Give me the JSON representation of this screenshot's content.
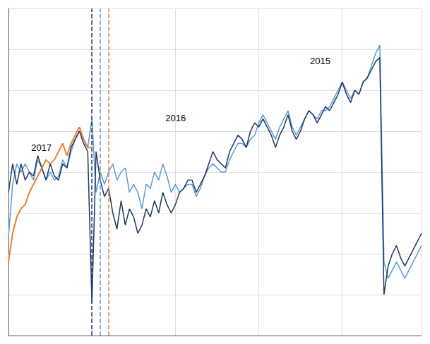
{
  "chart_data": {
    "type": "line",
    "x": [
      0,
      1,
      2,
      3,
      4,
      5,
      6,
      7,
      8,
      9,
      10,
      11,
      12,
      13,
      14,
      15,
      16,
      17,
      18,
      19,
      20,
      21,
      22,
      23,
      24,
      25,
      26,
      27,
      28,
      29,
      30,
      31,
      32,
      33,
      34,
      35,
      36,
      37,
      38,
      39,
      40,
      41,
      42,
      43,
      44,
      45,
      46,
      47,
      48,
      49,
      50,
      51,
      52,
      53,
      54,
      55,
      56,
      57,
      58,
      59,
      60,
      61,
      62,
      63,
      64,
      65,
      66,
      67,
      68,
      69,
      70,
      71,
      72,
      73,
      74,
      75,
      76,
      77,
      78,
      79,
      80,
      81,
      82,
      83,
      84,
      85,
      86,
      87,
      88,
      89,
      90,
      91,
      92,
      93,
      94,
      95,
      96,
      97,
      98,
      99
    ],
    "series": [
      {
        "color": "#5b9bd5",
        "values": [
          44,
          57,
          62,
          60,
          62,
          60,
          58,
          63,
          61,
          58,
          60,
          58,
          59,
          63,
          61,
          65,
          68,
          70,
          68,
          66,
          73,
          55,
          60,
          57,
          60,
          62,
          58,
          60,
          61,
          55,
          57,
          55,
          51,
          57,
          56,
          60,
          58,
          62,
          59,
          55,
          57,
          55,
          56,
          57,
          57,
          54,
          56,
          59,
          61,
          62,
          61,
          60,
          60,
          63,
          65,
          67,
          67,
          66,
          68,
          69,
          72,
          74,
          72,
          70,
          68,
          71,
          73,
          75,
          71,
          69,
          71,
          73,
          75,
          74,
          73,
          75,
          75,
          76,
          78,
          80,
          82,
          80,
          78,
          80,
          79,
          82,
          83,
          86,
          89,
          91,
          38,
          34,
          36,
          38,
          36,
          34,
          36,
          38,
          40,
          42
        ]
      },
      {
        "color": "#1f3864",
        "values": [
          55,
          62,
          57,
          62,
          58,
          60,
          59,
          64,
          61,
          58,
          62,
          59,
          58,
          62,
          61,
          66,
          68,
          70,
          67,
          65,
          28,
          65,
          58,
          54,
          56,
          50,
          46,
          53,
          47,
          51,
          49,
          45,
          47,
          51,
          49,
          53,
          50,
          55,
          52,
          50,
          52,
          55,
          56,
          58,
          58,
          55,
          57,
          59,
          62,
          65,
          63,
          62,
          61,
          65,
          67,
          69,
          68,
          66,
          70,
          72,
          71,
          73,
          71,
          69,
          66,
          69,
          71,
          74,
          70,
          68,
          70,
          73,
          75,
          74,
          72,
          74,
          76,
          75,
          77,
          79,
          82,
          79,
          77,
          80,
          79,
          82,
          83,
          85,
          87,
          88,
          30,
          37,
          40,
          42,
          39,
          37,
          39,
          41,
          43,
          45
        ]
      },
      {
        "color": "#ed7d31",
        "values": [
          38,
          45,
          49,
          51,
          52,
          55,
          57,
          59,
          61,
          63,
          62,
          63,
          65,
          67,
          64,
          67,
          69,
          71,
          68,
          66,
          66,
          null,
          null,
          null,
          null,
          null,
          null,
          null,
          null,
          null,
          null,
          null,
          null,
          null,
          null,
          null,
          null,
          null,
          null,
          null,
          null,
          null,
          null,
          null,
          null,
          null,
          null,
          null,
          null,
          null,
          null,
          null,
          null,
          null,
          null,
          null,
          null,
          null,
          null,
          null,
          null,
          null,
          null,
          null,
          null,
          null,
          null,
          null,
          null,
          null,
          null,
          null,
          null,
          null,
          null,
          null,
          null,
          null,
          null,
          null,
          null,
          null,
          null,
          null,
          null,
          null,
          null,
          null,
          null,
          null,
          null,
          null,
          null,
          null,
          null,
          null,
          null,
          null,
          null,
          null
        ]
      }
    ],
    "vlines": [
      {
        "x": 20,
        "color": "#1f3864"
      },
      {
        "x": 22,
        "color": "#5b9bd5"
      },
      {
        "x": 24,
        "color": "#ed7d31"
      }
    ],
    "annotations": [
      "2017",
      "2016",
      "2015"
    ],
    "xlim": [
      0,
      99
    ],
    "xticks": [
      0,
      20,
      40,
      60,
      80
    ],
    "ylim": [
      20,
      100
    ],
    "yticks": [
      20,
      30,
      40,
      50,
      60,
      70,
      80,
      90,
      100
    ],
    "grid": true,
    "tick_labels": false
  }
}
